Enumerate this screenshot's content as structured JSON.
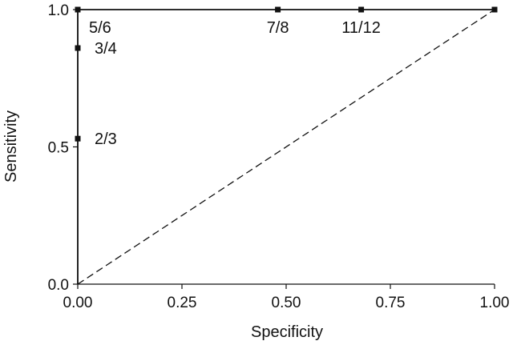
{
  "chart_data": {
    "type": "line",
    "title": "",
    "xlabel": "Specificity",
    "ylabel": "Sensitivity",
    "xlim": [
      0,
      1
    ],
    "ylim": [
      0,
      1
    ],
    "grid": false,
    "x_ticks": [
      {
        "value": 0.0,
        "label": "0.00"
      },
      {
        "value": 0.25,
        "label": "0.25"
      },
      {
        "value": 0.5,
        "label": "0.50"
      },
      {
        "value": 0.75,
        "label": "0.75"
      },
      {
        "value": 1.0,
        "label": "1.00"
      }
    ],
    "y_ticks": [
      {
        "value": 0.0,
        "label": "0.0"
      },
      {
        "value": 0.5,
        "label": "0.5"
      },
      {
        "value": 1.0,
        "label": "1.0"
      }
    ],
    "series": [
      {
        "style": "solid",
        "color": "#111111",
        "points": [
          {
            "x": 0.0,
            "y": 0.0
          },
          {
            "x": 0.0,
            "y": 0.53,
            "label": "2/3"
          },
          {
            "x": 0.0,
            "y": 0.86,
            "label": "3/4"
          },
          {
            "x": 0.0,
            "y": 1.0,
            "label": "5/6"
          },
          {
            "x": 0.48,
            "y": 1.0,
            "label": "7/8"
          },
          {
            "x": 0.68,
            "y": 1.0,
            "label": "11/12"
          },
          {
            "x": 1.0,
            "y": 1.0
          }
        ]
      },
      {
        "style": "dashed",
        "color": "#111111",
        "points": [
          {
            "x": 0.0,
            "y": 0.0
          },
          {
            "x": 1.0,
            "y": 1.0
          }
        ]
      }
    ]
  }
}
